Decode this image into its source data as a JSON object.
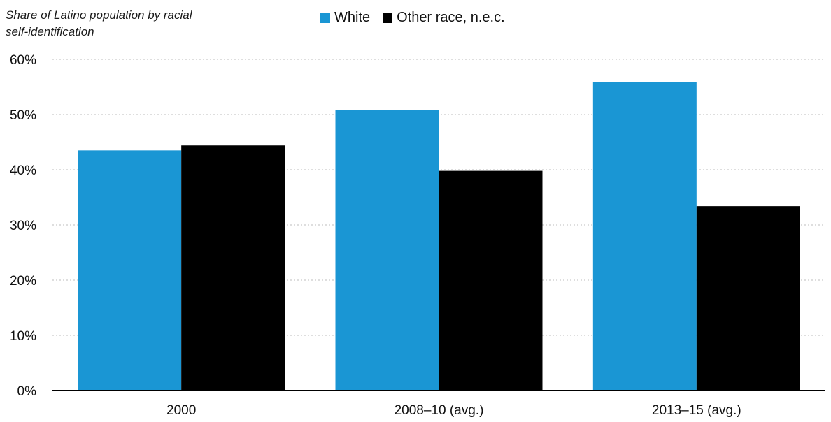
{
  "chart_data": {
    "type": "bar",
    "title": "",
    "ylabel_lines": [
      "Share of Latino population by racial",
      "self-identification"
    ],
    "xlabel": "",
    "categories": [
      "2000",
      "2008–10 (avg.)",
      "2013–15 (avg.)"
    ],
    "series": [
      {
        "name": "White",
        "color": "#1a96d4",
        "values": [
          43.5,
          50.8,
          55.9
        ]
      },
      {
        "name": "Other race, n.e.c.",
        "color": "#000000",
        "values": [
          44.4,
          39.8,
          33.4
        ]
      }
    ],
    "ylim": [
      0,
      60
    ],
    "yticks": [
      0,
      10,
      20,
      30,
      40,
      50,
      60
    ],
    "ytick_labels": [
      "0%",
      "10%",
      "20%",
      "30%",
      "40%",
      "50%",
      "60%"
    ],
    "grid": true,
    "legend_position": "top-center"
  }
}
